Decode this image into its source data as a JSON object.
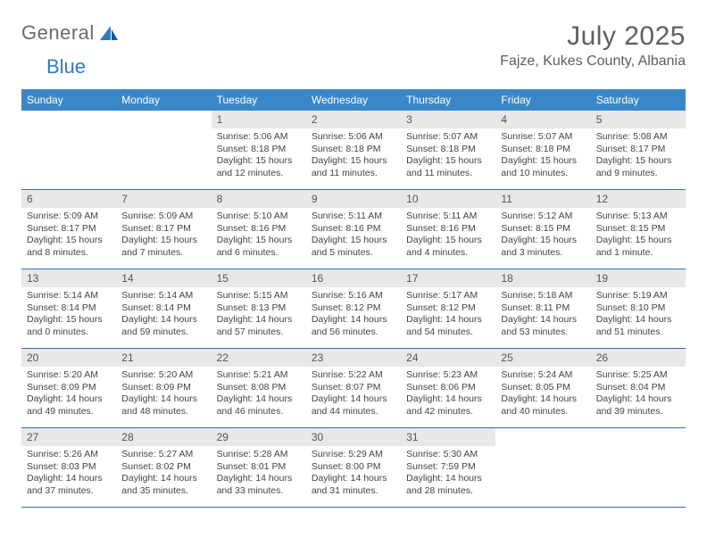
{
  "logo": {
    "text1": "General",
    "text2": "Blue"
  },
  "title": {
    "month": "July 2025",
    "location": "Fajze, Kukes County, Albania"
  },
  "colors": {
    "header_bg": "#3a87c8",
    "header_text": "#ffffff",
    "date_bg": "#e8e8e8",
    "rule": "#3a6ea5",
    "body_text": "#444444",
    "title_text": "#5f5f5f",
    "logo_gray": "#6b6b6b",
    "logo_blue": "#2f7ac0",
    "page_bg": "#ffffff"
  },
  "typography": {
    "month_fontsize": 30,
    "location_fontsize": 16,
    "dayhead_fontsize": 12,
    "datenum_fontsize": 12,
    "body_fontsize": 10.5
  },
  "day_names": [
    "Sunday",
    "Monday",
    "Tuesday",
    "Wednesday",
    "Thursday",
    "Friday",
    "Saturday"
  ],
  "weeks": [
    [
      null,
      null,
      {
        "n": "1",
        "sr": "5:06 AM",
        "ss": "8:18 PM",
        "dl": "15 hours and 12 minutes."
      },
      {
        "n": "2",
        "sr": "5:06 AM",
        "ss": "8:18 PM",
        "dl": "15 hours and 11 minutes."
      },
      {
        "n": "3",
        "sr": "5:07 AM",
        "ss": "8:18 PM",
        "dl": "15 hours and 11 minutes."
      },
      {
        "n": "4",
        "sr": "5:07 AM",
        "ss": "8:18 PM",
        "dl": "15 hours and 10 minutes."
      },
      {
        "n": "5",
        "sr": "5:08 AM",
        "ss": "8:17 PM",
        "dl": "15 hours and 9 minutes."
      }
    ],
    [
      {
        "n": "6",
        "sr": "5:09 AM",
        "ss": "8:17 PM",
        "dl": "15 hours and 8 minutes."
      },
      {
        "n": "7",
        "sr": "5:09 AM",
        "ss": "8:17 PM",
        "dl": "15 hours and 7 minutes."
      },
      {
        "n": "8",
        "sr": "5:10 AM",
        "ss": "8:16 PM",
        "dl": "15 hours and 6 minutes."
      },
      {
        "n": "9",
        "sr": "5:11 AM",
        "ss": "8:16 PM",
        "dl": "15 hours and 5 minutes."
      },
      {
        "n": "10",
        "sr": "5:11 AM",
        "ss": "8:16 PM",
        "dl": "15 hours and 4 minutes."
      },
      {
        "n": "11",
        "sr": "5:12 AM",
        "ss": "8:15 PM",
        "dl": "15 hours and 3 minutes."
      },
      {
        "n": "12",
        "sr": "5:13 AM",
        "ss": "8:15 PM",
        "dl": "15 hours and 1 minute."
      }
    ],
    [
      {
        "n": "13",
        "sr": "5:14 AM",
        "ss": "8:14 PM",
        "dl": "15 hours and 0 minutes."
      },
      {
        "n": "14",
        "sr": "5:14 AM",
        "ss": "8:14 PM",
        "dl": "14 hours and 59 minutes."
      },
      {
        "n": "15",
        "sr": "5:15 AM",
        "ss": "8:13 PM",
        "dl": "14 hours and 57 minutes."
      },
      {
        "n": "16",
        "sr": "5:16 AM",
        "ss": "8:12 PM",
        "dl": "14 hours and 56 minutes."
      },
      {
        "n": "17",
        "sr": "5:17 AM",
        "ss": "8:12 PM",
        "dl": "14 hours and 54 minutes."
      },
      {
        "n": "18",
        "sr": "5:18 AM",
        "ss": "8:11 PM",
        "dl": "14 hours and 53 minutes."
      },
      {
        "n": "19",
        "sr": "5:19 AM",
        "ss": "8:10 PM",
        "dl": "14 hours and 51 minutes."
      }
    ],
    [
      {
        "n": "20",
        "sr": "5:20 AM",
        "ss": "8:09 PM",
        "dl": "14 hours and 49 minutes."
      },
      {
        "n": "21",
        "sr": "5:20 AM",
        "ss": "8:09 PM",
        "dl": "14 hours and 48 minutes."
      },
      {
        "n": "22",
        "sr": "5:21 AM",
        "ss": "8:08 PM",
        "dl": "14 hours and 46 minutes."
      },
      {
        "n": "23",
        "sr": "5:22 AM",
        "ss": "8:07 PM",
        "dl": "14 hours and 44 minutes."
      },
      {
        "n": "24",
        "sr": "5:23 AM",
        "ss": "8:06 PM",
        "dl": "14 hours and 42 minutes."
      },
      {
        "n": "25",
        "sr": "5:24 AM",
        "ss": "8:05 PM",
        "dl": "14 hours and 40 minutes."
      },
      {
        "n": "26",
        "sr": "5:25 AM",
        "ss": "8:04 PM",
        "dl": "14 hours and 39 minutes."
      }
    ],
    [
      {
        "n": "27",
        "sr": "5:26 AM",
        "ss": "8:03 PM",
        "dl": "14 hours and 37 minutes."
      },
      {
        "n": "28",
        "sr": "5:27 AM",
        "ss": "8:02 PM",
        "dl": "14 hours and 35 minutes."
      },
      {
        "n": "29",
        "sr": "5:28 AM",
        "ss": "8:01 PM",
        "dl": "14 hours and 33 minutes."
      },
      {
        "n": "30",
        "sr": "5:29 AM",
        "ss": "8:00 PM",
        "dl": "14 hours and 31 minutes."
      },
      {
        "n": "31",
        "sr": "5:30 AM",
        "ss": "7:59 PM",
        "dl": "14 hours and 28 minutes."
      },
      null,
      null
    ]
  ],
  "labels": {
    "sunrise": "Sunrise:",
    "sunset": "Sunset:",
    "daylight": "Daylight:"
  }
}
